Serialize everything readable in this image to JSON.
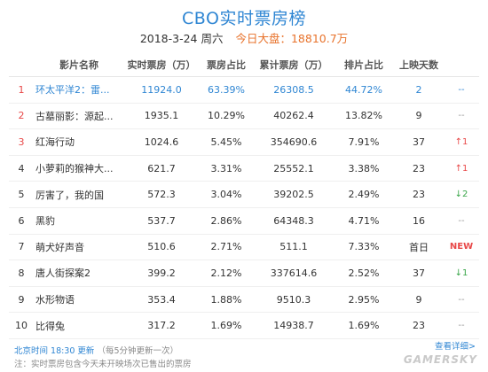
{
  "header": {
    "title": "CBO实时票房榜",
    "date": "2018-3-24 周六",
    "total_label": "今日大盘：",
    "total_value": "18810.7万"
  },
  "chart_data": {
    "type": "table",
    "columns": [
      "",
      "影片名称",
      "实时票房（万）",
      "票房占比",
      "累计票房（万）",
      "排片占比",
      "上映天数",
      ""
    ],
    "rows": [
      {
        "rank": "1",
        "name": "环太平洋2：雷...",
        "box": "11924.0",
        "share": "63.39%",
        "total": "26308.5",
        "screen": "44.72%",
        "days": "2",
        "trend": "--",
        "trend_type": "same"
      },
      {
        "rank": "2",
        "name": "古墓丽影：源起...",
        "box": "1935.1",
        "share": "10.29%",
        "total": "40262.4",
        "screen": "13.82%",
        "days": "9",
        "trend": "--",
        "trend_type": "same"
      },
      {
        "rank": "3",
        "name": "红海行动",
        "box": "1024.6",
        "share": "5.45%",
        "total": "354690.6",
        "screen": "7.91%",
        "days": "37",
        "trend": "↑1",
        "trend_type": "up"
      },
      {
        "rank": "4",
        "name": "小萝莉的猴神大...",
        "box": "621.7",
        "share": "3.31%",
        "total": "25552.1",
        "screen": "3.38%",
        "days": "23",
        "trend": "↑1",
        "trend_type": "up"
      },
      {
        "rank": "5",
        "name": "厉害了，我的国",
        "box": "572.3",
        "share": "3.04%",
        "total": "39202.5",
        "screen": "2.49%",
        "days": "23",
        "trend": "↓2",
        "trend_type": "down"
      },
      {
        "rank": "6",
        "name": "黑豹",
        "box": "537.7",
        "share": "2.86%",
        "total": "64348.3",
        "screen": "4.71%",
        "days": "16",
        "trend": "--",
        "trend_type": "same"
      },
      {
        "rank": "7",
        "name": "萌犬好声音",
        "box": "510.6",
        "share": "2.71%",
        "total": "511.1",
        "screen": "7.33%",
        "days": "首日",
        "trend": "NEW",
        "trend_type": "new"
      },
      {
        "rank": "8",
        "name": "唐人街探案2",
        "box": "399.2",
        "share": "2.12%",
        "total": "337614.6",
        "screen": "2.52%",
        "days": "37",
        "trend": "↓1",
        "trend_type": "down"
      },
      {
        "rank": "9",
        "name": "水形物语",
        "box": "353.4",
        "share": "1.88%",
        "total": "9510.3",
        "screen": "2.95%",
        "days": "9",
        "trend": "--",
        "trend_type": "same"
      },
      {
        "rank": "10",
        "name": "比得兔",
        "box": "317.2",
        "share": "1.69%",
        "total": "14938.7",
        "screen": "1.69%",
        "days": "23",
        "trend": "--",
        "trend_type": "same"
      }
    ]
  },
  "footer": {
    "update_time": "北京时间 18:30 更新",
    "update_note": "（每5分钟更新一次）",
    "note": "注：实时票房包含今天未开映场次已售出的票房",
    "more_link": "查看详细>",
    "watermark": "GAMERSKY"
  },
  "colors": {
    "accent": "#2f86d3",
    "up": "#e84848",
    "down": "#3aa64a",
    "total": "#e8732c"
  }
}
